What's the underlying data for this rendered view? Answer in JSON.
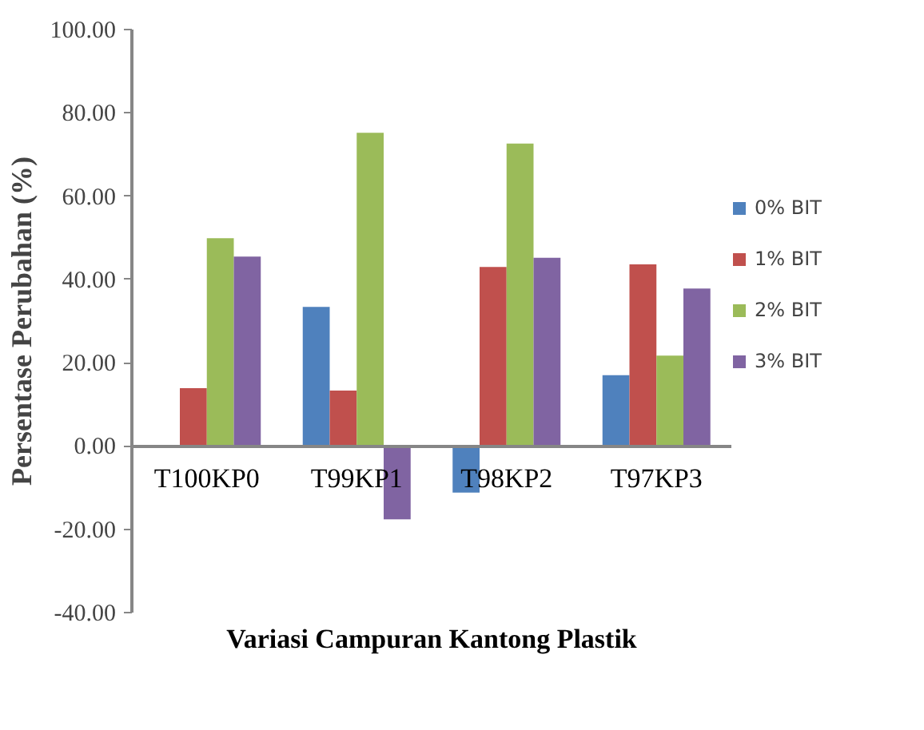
{
  "chart_data": {
    "type": "bar",
    "xlabel": "Variasi Campuran Kantong Plastik",
    "ylabel": "Persentase Perubahan (%)",
    "categories": [
      "T100KP0",
      "T99KP1",
      "T98KP2",
      "T97KP3"
    ],
    "series": [
      {
        "name": "0% BIT",
        "color": "#4f81bd",
        "values": [
          0,
          33.4,
          -11.2,
          17.0
        ]
      },
      {
        "name": "1% BIT",
        "color": "#c0504d",
        "values": [
          13.9,
          13.3,
          43.0,
          43.6
        ]
      },
      {
        "name": "2% BIT",
        "color": "#9bbb59",
        "values": [
          49.9,
          75.2,
          72.6,
          21.7
        ]
      },
      {
        "name": "3% BIT",
        "color": "#8064a2",
        "values": [
          45.5,
          -17.6,
          45.2,
          37.8
        ]
      }
    ],
    "ylim": [
      -40,
      100
    ],
    "yticks": [
      {
        "value": -40,
        "label": "-40.00"
      },
      {
        "value": -20,
        "label": "-20.00"
      },
      {
        "value": 0,
        "label": "0.00"
      },
      {
        "value": 20,
        "label": "20.00"
      },
      {
        "value": 40,
        "label": "40.00"
      },
      {
        "value": 60,
        "label": "60.00"
      },
      {
        "value": 80,
        "label": "80.00"
      },
      {
        "value": 100,
        "label": "100.00"
      }
    ],
    "grid": false,
    "legend": "right"
  }
}
